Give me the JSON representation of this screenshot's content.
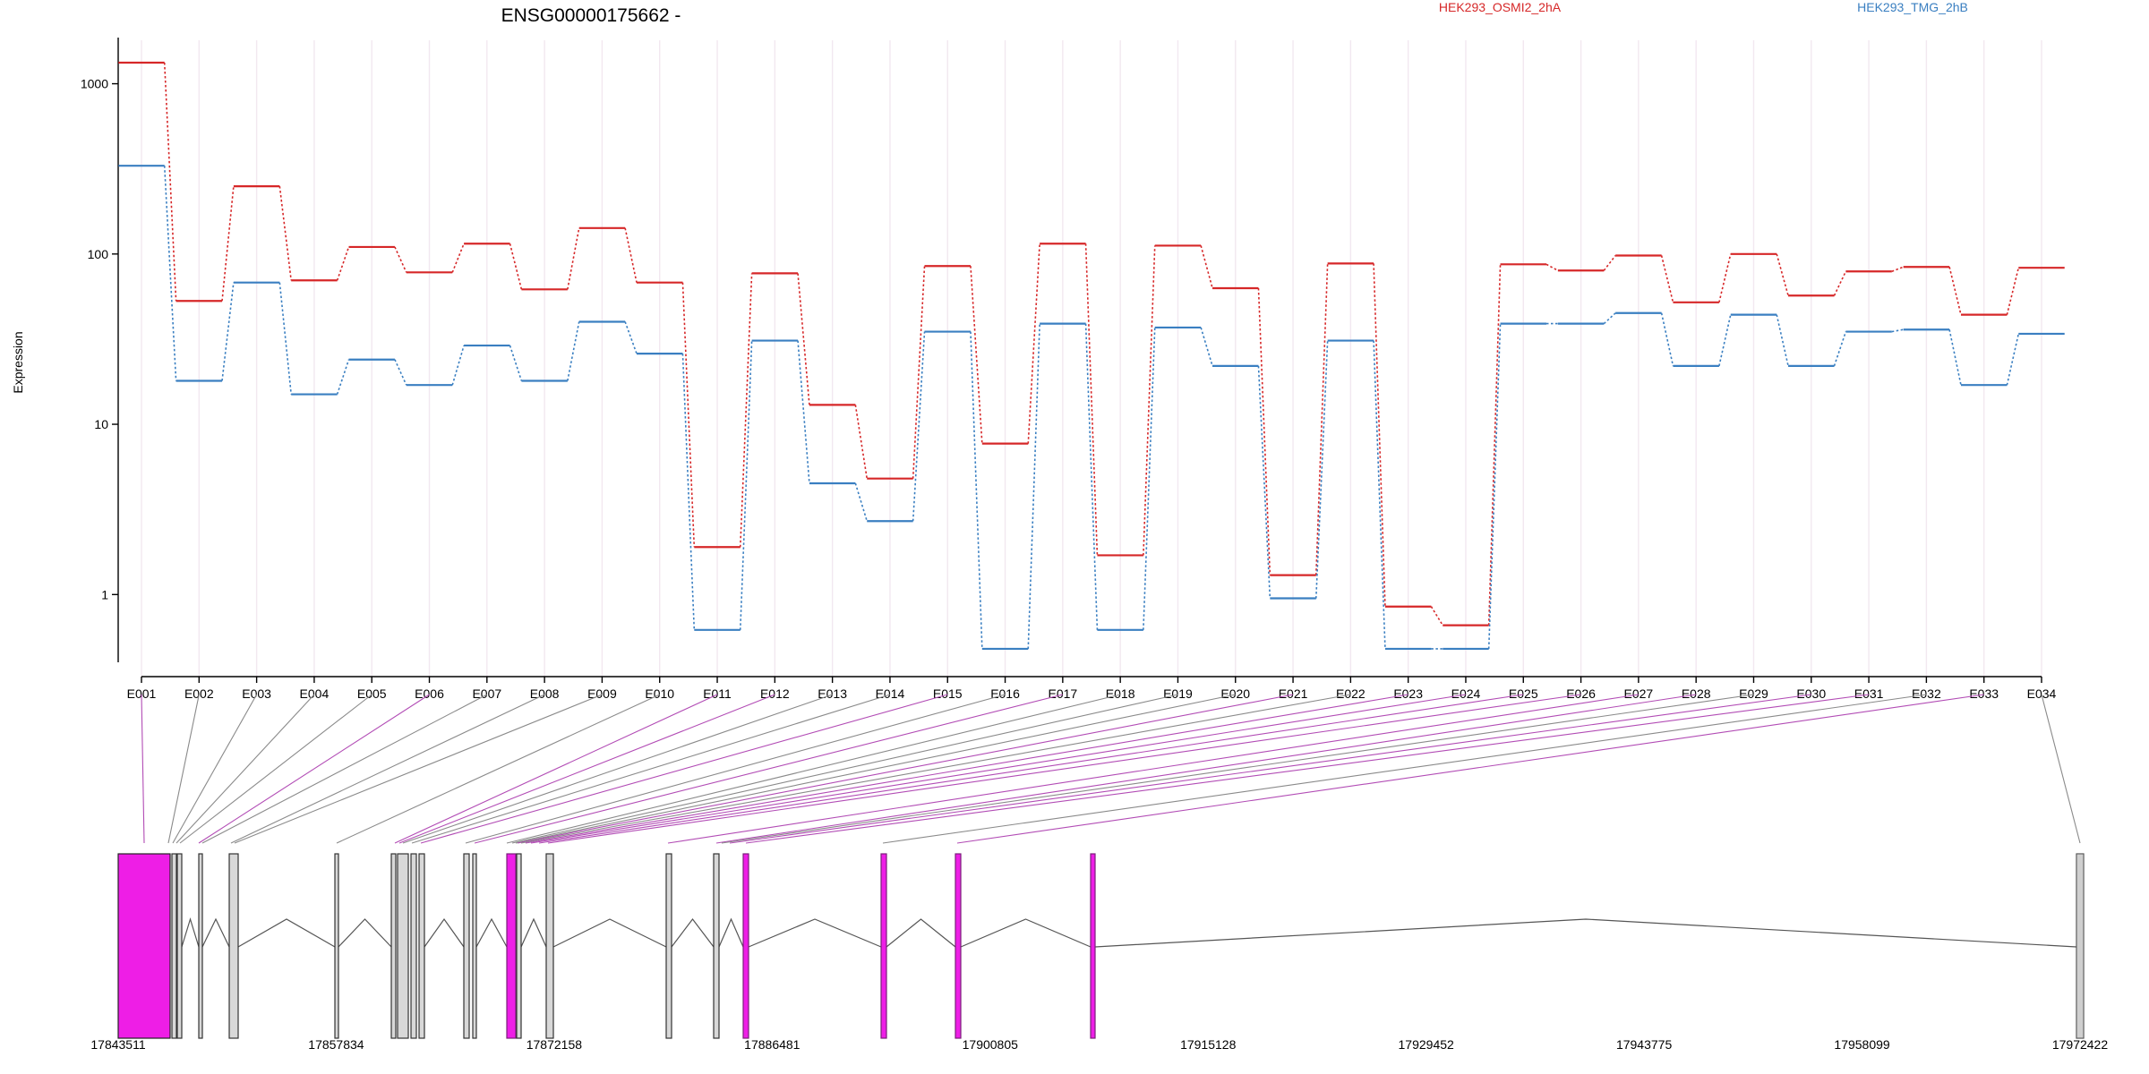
{
  "chart_data": {
    "type": "line",
    "title": "ENSG00000175662 -",
    "xlabel": "",
    "ylabel": "Expression",
    "yscale": "log",
    "ylim": [
      0.4,
      1800
    ],
    "grid": "vertical",
    "legend_position": "top",
    "y_ticks": [
      "1",
      "10",
      "100",
      "1000"
    ],
    "categories": [
      "E001",
      "E002",
      "E003",
      "E004",
      "E005",
      "E006",
      "E007",
      "E008",
      "E009",
      "E010",
      "E011",
      "E012",
      "E013",
      "E014",
      "E015",
      "E016",
      "E017",
      "E018",
      "E019",
      "E020",
      "E021",
      "E022",
      "E023",
      "E024",
      "E025",
      "E026",
      "E027",
      "E028",
      "E029",
      "E030",
      "E031",
      "E032",
      "E033",
      "E034"
    ],
    "series": [
      {
        "name": "HEK293_OSMI2_2hA",
        "color": "#d62728",
        "values": [
          1330,
          53,
          250,
          70,
          110,
          78,
          115,
          62,
          142,
          68,
          1.9,
          77,
          13,
          4.8,
          85,
          7.7,
          115,
          1.7,
          112,
          63,
          1.3,
          88,
          0.85,
          0.66,
          87,
          80,
          98,
          52,
          100,
          57,
          79,
          84,
          44,
          83
        ]
      },
      {
        "name": "HEK293_TMG_2hB",
        "color": "#3a7fc1",
        "values": [
          330,
          18,
          68,
          15,
          24,
          17,
          29,
          18,
          40,
          26,
          0.62,
          31,
          4.5,
          2.7,
          35,
          0.48,
          39,
          0.62,
          37,
          22,
          0.95,
          31,
          0.48,
          0.48,
          39,
          39,
          45,
          22,
          44,
          22,
          35,
          36,
          17,
          34
        ]
      }
    ],
    "gene_model": {
      "genomic_ticks": [
        "17843511",
        "17857834",
        "17872158",
        "17886481",
        "17900805",
        "17915128",
        "17929452",
        "17943775",
        "17958099",
        "17972422"
      ],
      "highlight_color": "#ee1ee6",
      "highlighted_exons": [
        "E001",
        "E006",
        "E011",
        "E012",
        "E015",
        "E017",
        "E021",
        "E023",
        "E024",
        "E025",
        "E026",
        "E027",
        "E028",
        "E030",
        "E031",
        "E033"
      ]
    }
  }
}
